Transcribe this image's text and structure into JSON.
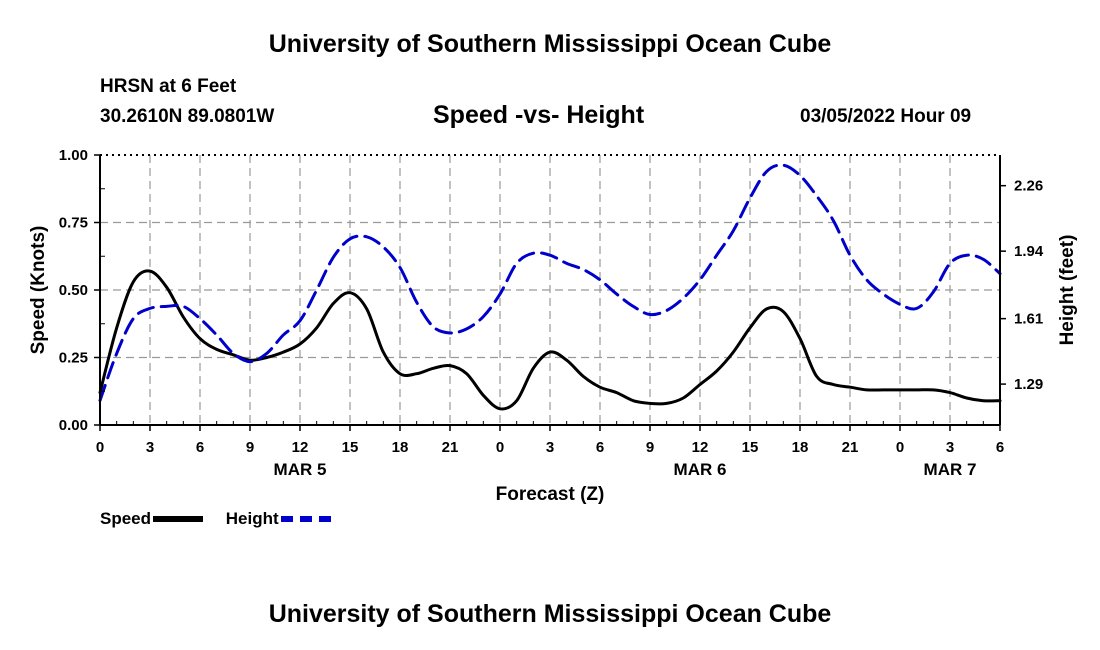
{
  "header": {
    "title": "University of Southern Mississippi Ocean Cube",
    "station": "HRSN at 6 Feet",
    "coordinates": "30.2610N  89.0801W",
    "subtitle": "Speed -vs- Height",
    "datetime": "03/05/2022 Hour 09"
  },
  "footer": {
    "title": "University of Southern Mississippi Ocean Cube"
  },
  "legend": {
    "speed_label": "Speed",
    "height_label": "Height"
  },
  "colors": {
    "speed": "#000000",
    "height": "#0000cc",
    "grid": "#999999"
  },
  "chart_data": {
    "type": "line",
    "xlabel": "Forecast (Z)",
    "x_hours_range": [
      0,
      54
    ],
    "x_tick_hours": [
      0,
      3,
      6,
      9,
      12,
      15,
      18,
      21,
      24,
      27,
      30,
      33,
      36,
      39,
      42,
      45,
      48,
      51,
      54
    ],
    "x_tick_labels": [
      "0",
      "3",
      "6",
      "9",
      "12",
      "15",
      "18",
      "21",
      "0",
      "3",
      "6",
      "9",
      "12",
      "15",
      "18",
      "21",
      "0",
      "3",
      "6"
    ],
    "date_labels": [
      {
        "hour": 12,
        "label": "MAR 5"
      },
      {
        "hour": 36,
        "label": "MAR 6"
      },
      {
        "hour": 51,
        "label": "MAR 7"
      }
    ],
    "y_left": {
      "label": "Speed (Knots)",
      "range": [
        0,
        1
      ],
      "ticks": [
        0,
        0.25,
        0.5,
        0.75,
        1.0
      ],
      "tick_labels": [
        "0.00",
        "0.25",
        "0.50",
        "0.75",
        "1.00"
      ]
    },
    "y_right": {
      "label": "Height (feet)",
      "range": [
        1.09,
        2.41
      ],
      "ticks": [
        1.29,
        1.61,
        1.94,
        2.26
      ],
      "tick_labels": [
        "1.29",
        "1.61",
        "1.94",
        "2.26"
      ]
    },
    "series": [
      {
        "name": "Speed",
        "axis": "left",
        "style": "solid",
        "x": [
          0,
          1,
          2,
          3,
          4,
          5,
          6,
          7,
          8,
          9,
          10,
          11,
          12,
          13,
          14,
          15,
          16,
          17,
          18,
          19,
          20,
          21,
          22,
          23,
          24,
          25,
          26,
          27,
          28,
          29,
          30,
          31,
          32,
          33,
          34,
          35,
          36,
          37,
          38,
          39,
          40,
          41,
          42,
          43,
          44,
          45,
          46,
          47,
          48,
          49,
          50,
          51,
          52,
          53,
          54
        ],
        "values": [
          0.12,
          0.36,
          0.53,
          0.57,
          0.51,
          0.4,
          0.32,
          0.28,
          0.26,
          0.24,
          0.25,
          0.27,
          0.3,
          0.36,
          0.45,
          0.49,
          0.43,
          0.27,
          0.19,
          0.19,
          0.21,
          0.22,
          0.19,
          0.11,
          0.06,
          0.09,
          0.21,
          0.27,
          0.24,
          0.18,
          0.14,
          0.12,
          0.09,
          0.08,
          0.08,
          0.1,
          0.15,
          0.2,
          0.27,
          0.36,
          0.43,
          0.42,
          0.32,
          0.18,
          0.15,
          0.14,
          0.13,
          0.13,
          0.13,
          0.13,
          0.13,
          0.12,
          0.1,
          0.09,
          0.09
        ]
      },
      {
        "name": "Height",
        "axis": "right",
        "style": "dashed",
        "x": [
          0,
          1,
          2,
          3,
          4,
          5,
          6,
          7,
          8,
          9,
          10,
          11,
          12,
          13,
          14,
          15,
          16,
          17,
          18,
          19,
          20,
          21,
          22,
          23,
          24,
          25,
          26,
          27,
          28,
          29,
          30,
          31,
          32,
          33,
          34,
          35,
          36,
          37,
          38,
          39,
          40,
          41,
          42,
          43,
          44,
          45,
          46,
          47,
          48,
          49,
          50,
          51,
          52,
          53,
          54
        ],
        "values": [
          1.21,
          1.44,
          1.61,
          1.66,
          1.67,
          1.67,
          1.61,
          1.53,
          1.44,
          1.4,
          1.44,
          1.53,
          1.6,
          1.75,
          1.91,
          2.0,
          2.01,
          1.96,
          1.86,
          1.69,
          1.57,
          1.54,
          1.56,
          1.62,
          1.73,
          1.88,
          1.93,
          1.92,
          1.88,
          1.85,
          1.8,
          1.73,
          1.67,
          1.63,
          1.65,
          1.71,
          1.8,
          1.92,
          2.04,
          2.2,
          2.33,
          2.36,
          2.31,
          2.21,
          2.09,
          1.92,
          1.8,
          1.73,
          1.68,
          1.66,
          1.74,
          1.88,
          1.92,
          1.9,
          1.83
        ]
      }
    ]
  }
}
